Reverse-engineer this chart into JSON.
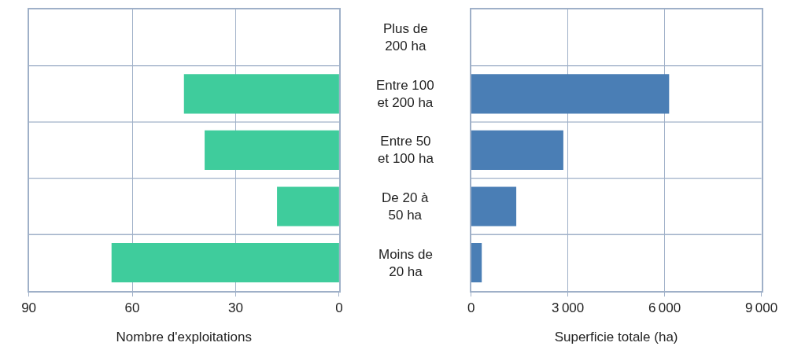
{
  "chart_data": [
    {
      "type": "bar",
      "orientation": "horizontal",
      "xlabel": "Nombre d'exploitations",
      "categories": [
        "Plus de 200 ha",
        "Entre 100 et 200 ha",
        "Entre 50 et 100 ha",
        "De 20 à 50 ha",
        "Moins de 20 ha"
      ],
      "values": [
        0,
        45,
        39,
        18,
        66
      ],
      "color": "#3fcc9c",
      "xlim": [
        90,
        0
      ],
      "xticks": [
        90,
        60,
        30,
        0
      ],
      "grid": true,
      "tick_labels": "x"
    },
    {
      "type": "bar",
      "orientation": "horizontal",
      "xlabel": "Superficie totale (ha)",
      "categories": [
        "Plus de 200 ha",
        "Entre 100 et 200 ha",
        "Entre 50 et 100 ha",
        "De 20 à 50 ha",
        "Moins de 20 ha"
      ],
      "values": [
        0,
        6140,
        2860,
        1400,
        330
      ],
      "color": "#4a7eb5",
      "xlim": [
        0,
        9000
      ],
      "xticks": [
        0,
        3000,
        6000,
        9000
      ],
      "grid": true
    }
  ]
}
